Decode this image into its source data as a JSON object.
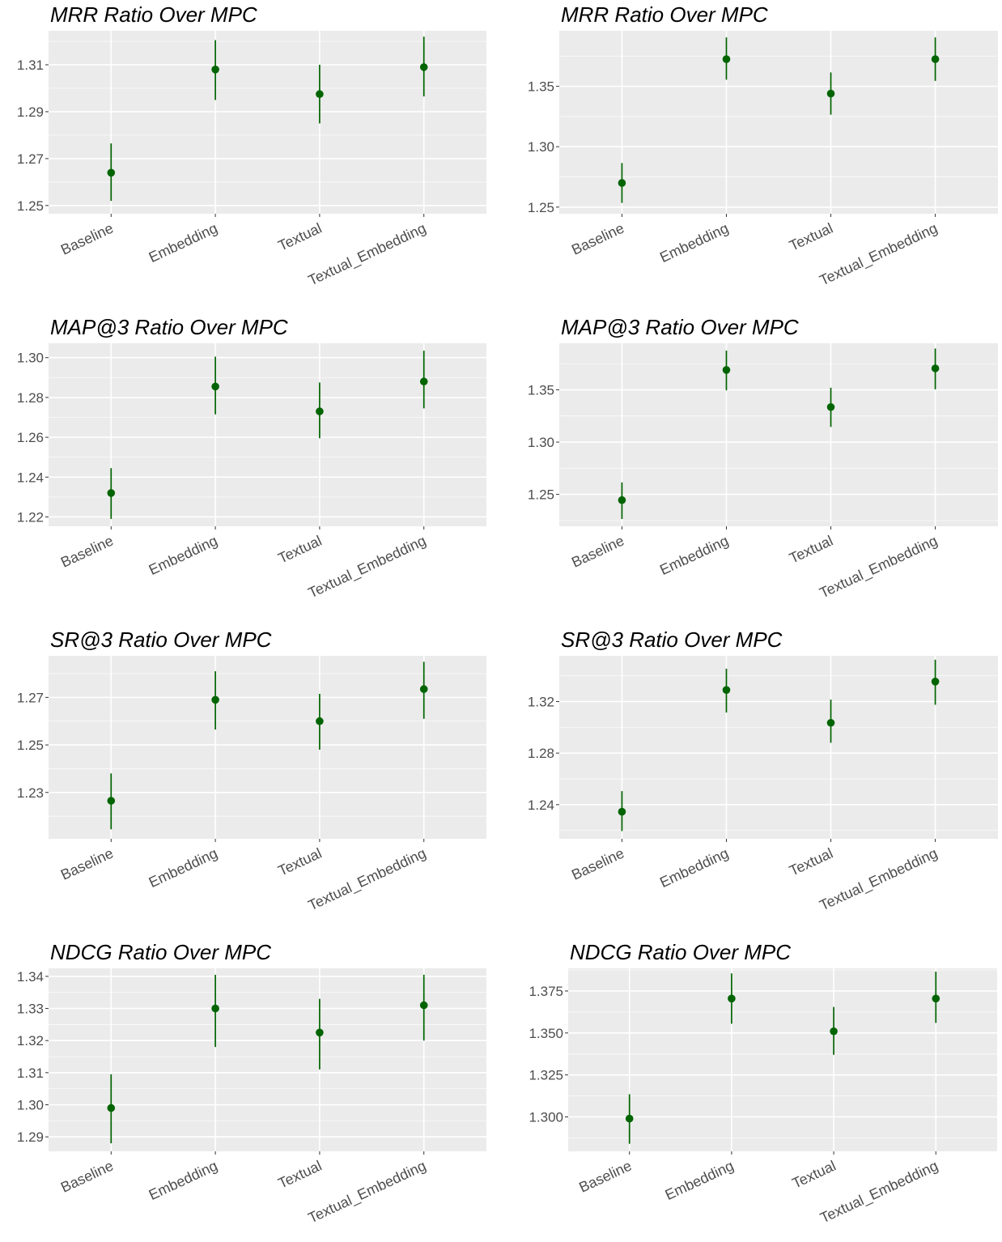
{
  "style": {
    "panel_bg": "#ebebeb",
    "grid_color": "#ffffff",
    "point_color": "#006400",
    "tick_color": "#4d4d4d"
  },
  "chart_data": [
    {
      "type": "scatter",
      "title": "MRR Ratio Over MPC",
      "categories": [
        "Baseline",
        "Embedding",
        "Textual",
        "Textual_Embedding"
      ],
      "ylim": [
        1.2465,
        1.3245
      ],
      "yticks": [
        "1.25",
        "1.27",
        "1.29",
        "1.31"
      ],
      "series": [
        {
          "values": [
            1.264,
            1.308,
            1.2975,
            1.309
          ],
          "lower": [
            1.252,
            1.295,
            1.285,
            1.2965
          ],
          "upper": [
            1.2765,
            1.3205,
            1.31,
            1.322
          ]
        }
      ],
      "grid": true
    },
    {
      "type": "scatter",
      "title": "MRR Ratio Over MPC",
      "categories": [
        "Baseline",
        "Embedding",
        "Textual",
        "Textual_Embedding"
      ],
      "ylim": [
        1.2445,
        1.396
      ],
      "yticks": [
        "1.25",
        "1.30",
        "1.35"
      ],
      "series": [
        {
          "values": [
            1.27,
            1.3725,
            1.344,
            1.3725
          ],
          "lower": [
            1.2535,
            1.3555,
            1.3265,
            1.3545
          ],
          "upper": [
            1.2865,
            1.3905,
            1.3615,
            1.3905
          ]
        }
      ],
      "grid": true
    },
    {
      "type": "scatter",
      "title": "MAP@3 Ratio Over MPC",
      "categories": [
        "Baseline",
        "Embedding",
        "Textual",
        "Textual_Embedding"
      ],
      "ylim": [
        1.2153,
        1.3072
      ],
      "yticks": [
        "1.22",
        "1.24",
        "1.26",
        "1.28",
        "1.30"
      ],
      "series": [
        {
          "values": [
            1.232,
            1.2855,
            1.273,
            1.288
          ],
          "lower": [
            1.219,
            1.2715,
            1.2595,
            1.2745
          ],
          "upper": [
            1.2445,
            1.3005,
            1.2875,
            1.3035
          ]
        }
      ],
      "grid": true
    },
    {
      "type": "scatter",
      "title": "MAP@3 Ratio Over MPC",
      "categories": [
        "Baseline",
        "Embedding",
        "Textual",
        "Textual_Embedding"
      ],
      "ylim": [
        1.2195,
        1.3945
      ],
      "yticks": [
        "1.25",
        "1.30",
        "1.35"
      ],
      "series": [
        {
          "values": [
            1.2445,
            1.369,
            1.3335,
            1.3705
          ],
          "lower": [
            1.2265,
            1.3495,
            1.3145,
            1.3505
          ],
          "upper": [
            1.2615,
            1.3875,
            1.352,
            1.3895
          ]
        }
      ],
      "grid": true
    },
    {
      "type": "scatter",
      "title": "SR@3 Ratio Over MPC",
      "categories": [
        "Baseline",
        "Embedding",
        "Textual",
        "Textual_Embedding"
      ],
      "ylim": [
        1.2105,
        1.2875
      ],
      "yticks": [
        "1.23",
        "1.25",
        "1.27"
      ],
      "series": [
        {
          "values": [
            1.2265,
            1.269,
            1.26,
            1.2735
          ],
          "lower": [
            1.2145,
            1.2565,
            1.248,
            1.261
          ],
          "upper": [
            1.238,
            1.281,
            1.2715,
            1.285
          ]
        }
      ],
      "grid": true
    },
    {
      "type": "scatter",
      "title": "SR@3 Ratio Over MPC",
      "categories": [
        "Baseline",
        "Embedding",
        "Textual",
        "Textual_Embedding"
      ],
      "ylim": [
        1.2135,
        1.3555
      ],
      "yticks": [
        "1.24",
        "1.28",
        "1.32"
      ],
      "series": [
        {
          "values": [
            1.2345,
            1.329,
            1.3035,
            1.3355
          ],
          "lower": [
            1.2195,
            1.3115,
            1.288,
            1.3175
          ],
          "upper": [
            1.2505,
            1.3455,
            1.3215,
            1.3525
          ]
        }
      ],
      "grid": true
    },
    {
      "type": "scatter",
      "title": "NDCG Ratio Over MPC",
      "categories": [
        "Baseline",
        "Embedding",
        "Textual",
        "Textual_Embedding"
      ],
      "ylim": [
        1.2855,
        1.3425
      ],
      "yticks": [
        "1.29",
        "1.30",
        "1.31",
        "1.32",
        "1.33",
        "1.34"
      ],
      "series": [
        {
          "values": [
            1.299,
            1.33,
            1.3225,
            1.331
          ],
          "lower": [
            1.288,
            1.318,
            1.311,
            1.32
          ],
          "upper": [
            1.3095,
            1.3405,
            1.333,
            1.3405
          ]
        }
      ],
      "grid": true
    },
    {
      "type": "scatter",
      "title": "NDCG Ratio Over MPC",
      "categories": [
        "Baseline",
        "Embedding",
        "Textual",
        "Textual_Embedding"
      ],
      "ylim": [
        1.2795,
        1.3885
      ],
      "yticks": [
        "1.300",
        "1.325",
        "1.350",
        "1.375"
      ],
      "series": [
        {
          "values": [
            1.299,
            1.3705,
            1.351,
            1.3705
          ],
          "lower": [
            1.284,
            1.3555,
            1.337,
            1.356
          ],
          "upper": [
            1.3135,
            1.3855,
            1.3655,
            1.3865
          ]
        }
      ],
      "grid": true
    }
  ]
}
